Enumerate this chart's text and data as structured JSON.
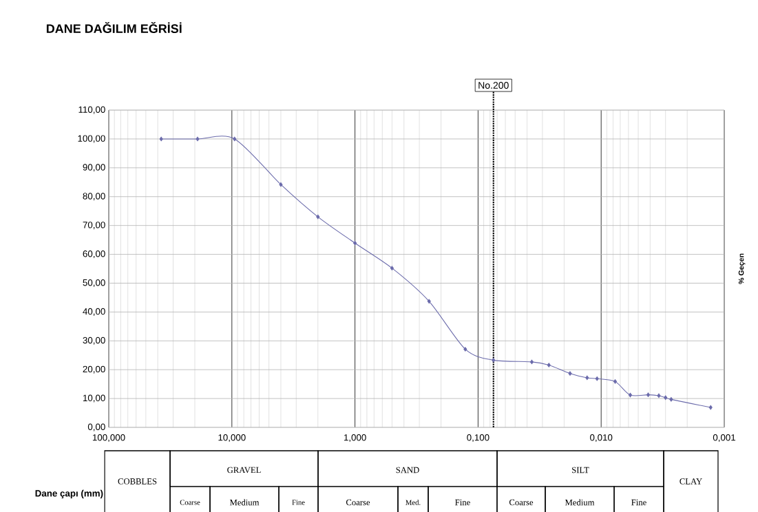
{
  "chart_data": {
    "type": "line",
    "title": "DANE DAĞILIM EĞRİSİ",
    "ylabel": "% Geçen",
    "annotations": [
      "Dane çapı (mm)",
      "COBBLES",
      "GRAVEL",
      "SAND",
      "SILT",
      "CLAY",
      "Coarse",
      "Medium",
      "Fine",
      "Coarse",
      "Med.",
      "Fine",
      "Coarse",
      "Medium",
      "Fine"
    ],
    "x": [
      37.5,
      19,
      9.5,
      4,
      2,
      1,
      0.5,
      0.25,
      0.127,
      0.075,
      0.0366,
      0.0266,
      0.0179,
      0.013,
      0.0108,
      0.0077,
      0.0058,
      0.00415,
      0.0034,
      0.003,
      0.0027,
      0.00129
    ],
    "series": [
      {
        "color": "#6b6bab",
        "values": [
          100,
          100,
          100,
          84.2,
          73,
          63.9,
          55.2,
          43.7,
          27.1,
          23.3,
          22.7,
          21.6,
          18.7,
          17.2,
          16.9,
          15.9,
          11.2,
          11.3,
          11,
          10.3,
          9.7,
          6.9
        ]
      }
    ],
    "xlim": [
      100,
      0.001
    ],
    "ylim": [
      0,
      110
    ],
    "xticks": [
      {
        "value": 100,
        "label": "100,000"
      },
      {
        "value": 10,
        "label": "10,000"
      },
      {
        "value": 1,
        "label": "1,000"
      },
      {
        "value": 0.1,
        "label": "0,100"
      },
      {
        "value": 0.01,
        "label": "0,010"
      },
      {
        "value": 0.001,
        "label": "0,001"
      }
    ],
    "yticks": [
      {
        "value": 0,
        "label": "0,00"
      },
      {
        "value": 10,
        "label": "10,00"
      },
      {
        "value": 20,
        "label": "20,00"
      },
      {
        "value": 30,
        "label": "30,00"
      },
      {
        "value": 40,
        "label": "40,00"
      },
      {
        "value": 50,
        "label": "50,00"
      },
      {
        "value": 60,
        "label": "60,00"
      },
      {
        "value": 70,
        "label": "70,00"
      },
      {
        "value": 80,
        "label": "80,00"
      },
      {
        "value": 90,
        "label": "90,00"
      },
      {
        "value": 100,
        "label": "100,00"
      },
      {
        "value": 110,
        "label": "110,00"
      }
    ],
    "log": "x",
    "grid": true,
    "marker": "diamond",
    "ref_lines": [
      {
        "axis": "x",
        "value": 0.075,
        "label": "No.200",
        "line_style": "dotted"
      }
    ]
  }
}
